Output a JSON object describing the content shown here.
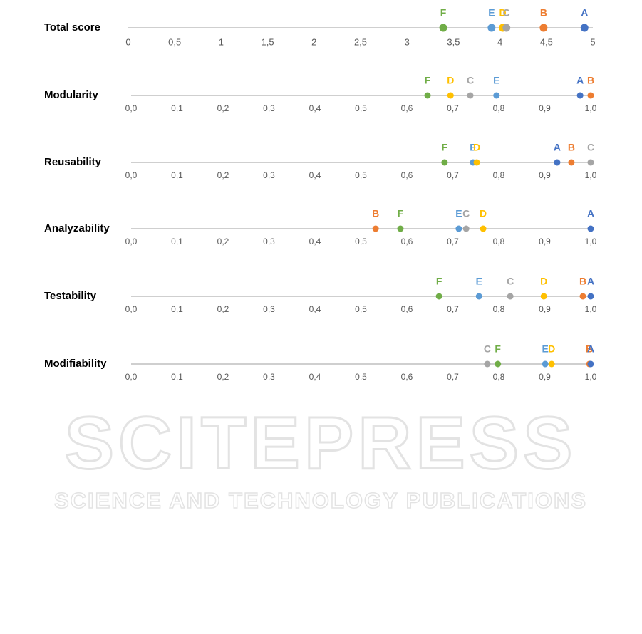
{
  "watermark": {
    "title": "SCITEPRESS",
    "subtitle": "SCIENCE AND TECHNOLOGY PUBLICATIONS"
  },
  "chart_data": [
    {
      "type": "dot",
      "title": "Total score",
      "categories": [
        "F",
        "E",
        "D",
        "C",
        "B",
        "A"
      ],
      "values": [
        3.39,
        3.91,
        4.03,
        4.07,
        4.47,
        4.91
      ],
      "colors": [
        "#70ad47",
        "#5b9bd5",
        "#ffc000",
        "#a5a5a5",
        "#ed7d31",
        "#4472c4"
      ],
      "xlim": [
        0,
        5
      ],
      "xticks": [
        0,
        {
          "value": 0.5,
          "label": "0,5"
        },
        1,
        {
          "value": 1.5,
          "label": "1,5"
        },
        2,
        {
          "value": 2.5,
          "label": "2,5"
        },
        3,
        {
          "value": 3.5,
          "label": "3,5"
        },
        4,
        {
          "value": 4.5,
          "label": "4,5"
        },
        5
      ]
    },
    {
      "type": "dot",
      "title": "Modularity",
      "categories": [
        "F",
        "D",
        "C",
        "E",
        "A",
        "B"
      ],
      "values": [
        0.645,
        0.695,
        0.738,
        0.795,
        0.977,
        1.0
      ],
      "colors": [
        "#70ad47",
        "#ffc000",
        "#a5a5a5",
        "#5b9bd5",
        "#4472c4",
        "#ed7d31"
      ],
      "xlim": [
        0,
        1
      ],
      "xticks": [
        {
          "value": 0,
          "label": "0,0"
        },
        {
          "value": 0.1,
          "label": "0,1"
        },
        {
          "value": 0.2,
          "label": "0,2"
        },
        {
          "value": 0.3,
          "label": "0,3"
        },
        {
          "value": 0.4,
          "label": "0,4"
        },
        {
          "value": 0.5,
          "label": "0,5"
        },
        {
          "value": 0.6,
          "label": "0,6"
        },
        {
          "value": 0.7,
          "label": "0,7"
        },
        {
          "value": 0.8,
          "label": "0,8"
        },
        {
          "value": 0.9,
          "label": "0,9"
        },
        {
          "value": 1,
          "label": "1,0"
        }
      ]
    },
    {
      "type": "dot",
      "title": "Reusability",
      "categories": [
        "F",
        "E",
        "D",
        "A",
        "B",
        "C"
      ],
      "values": [
        0.682,
        0.744,
        0.752,
        0.927,
        0.958,
        1.0
      ],
      "colors": [
        "#70ad47",
        "#5b9bd5",
        "#ffc000",
        "#4472c4",
        "#ed7d31",
        "#a5a5a5"
      ],
      "xlim": [
        0,
        1
      ],
      "xticks": [
        {
          "value": 0,
          "label": "0,0"
        },
        {
          "value": 0.1,
          "label": "0,1"
        },
        {
          "value": 0.2,
          "label": "0,2"
        },
        {
          "value": 0.3,
          "label": "0,3"
        },
        {
          "value": 0.4,
          "label": "0,4"
        },
        {
          "value": 0.5,
          "label": "0,5"
        },
        {
          "value": 0.6,
          "label": "0,6"
        },
        {
          "value": 0.7,
          "label": "0,7"
        },
        {
          "value": 0.8,
          "label": "0,8"
        },
        {
          "value": 0.9,
          "label": "0,9"
        },
        {
          "value": 1,
          "label": "1,0"
        }
      ]
    },
    {
      "type": "dot",
      "title": "Analyzability",
      "categories": [
        "B",
        "F",
        "E",
        "C",
        "D",
        "A"
      ],
      "values": [
        0.532,
        0.586,
        0.713,
        0.729,
        0.766,
        1.0
      ],
      "colors": [
        "#ed7d31",
        "#70ad47",
        "#5b9bd5",
        "#a5a5a5",
        "#ffc000",
        "#4472c4"
      ],
      "xlim": [
        0,
        1
      ],
      "xticks": [
        {
          "value": 0,
          "label": "0,0"
        },
        {
          "value": 0.1,
          "label": "0,1"
        },
        {
          "value": 0.2,
          "label": "0,2"
        },
        {
          "value": 0.3,
          "label": "0,3"
        },
        {
          "value": 0.4,
          "label": "0,4"
        },
        {
          "value": 0.5,
          "label": "0,5"
        },
        {
          "value": 0.6,
          "label": "0,6"
        },
        {
          "value": 0.7,
          "label": "0,7"
        },
        {
          "value": 0.8,
          "label": "0,8"
        },
        {
          "value": 0.9,
          "label": "0,9"
        },
        {
          "value": 1,
          "label": "1,0"
        }
      ]
    },
    {
      "type": "dot",
      "title": "Testability",
      "categories": [
        "F",
        "E",
        "C",
        "D",
        "B",
        "A"
      ],
      "values": [
        0.67,
        0.757,
        0.825,
        0.898,
        0.983,
        1.0
      ],
      "colors": [
        "#70ad47",
        "#5b9bd5",
        "#a5a5a5",
        "#ffc000",
        "#ed7d31",
        "#4472c4"
      ],
      "xlim": [
        0,
        1
      ],
      "xticks": [
        {
          "value": 0,
          "label": "0,0"
        },
        {
          "value": 0.1,
          "label": "0,1"
        },
        {
          "value": 0.2,
          "label": "0,2"
        },
        {
          "value": 0.3,
          "label": "0,3"
        },
        {
          "value": 0.4,
          "label": "0,4"
        },
        {
          "value": 0.5,
          "label": "0,5"
        },
        {
          "value": 0.6,
          "label": "0,6"
        },
        {
          "value": 0.7,
          "label": "0,7"
        },
        {
          "value": 0.8,
          "label": "0,8"
        },
        {
          "value": 0.9,
          "label": "0,9"
        },
        {
          "value": 1,
          "label": "1,0"
        }
      ]
    },
    {
      "type": "dot",
      "title": "Modifiability",
      "categories": [
        "C",
        "F",
        "E",
        "D",
        "B",
        "A"
      ],
      "values": [
        0.775,
        0.798,
        0.901,
        0.915,
        0.997,
        1.0
      ],
      "colors": [
        "#a5a5a5",
        "#70ad47",
        "#5b9bd5",
        "#ffc000",
        "#ed7d31",
        "#4472c4"
      ],
      "xlim": [
        0,
        1
      ],
      "xticks": [
        {
          "value": 0,
          "label": "0,0"
        },
        {
          "value": 0.1,
          "label": "0,1"
        },
        {
          "value": 0.2,
          "label": "0,2"
        },
        {
          "value": 0.3,
          "label": "0,3"
        },
        {
          "value": 0.4,
          "label": "0,4"
        },
        {
          "value": 0.5,
          "label": "0,5"
        },
        {
          "value": 0.6,
          "label": "0,6"
        },
        {
          "value": 0.7,
          "label": "0,7"
        },
        {
          "value": 0.8,
          "label": "0,8"
        },
        {
          "value": 0.9,
          "label": "0,9"
        },
        {
          "value": 1,
          "label": "1,0"
        }
      ]
    }
  ]
}
